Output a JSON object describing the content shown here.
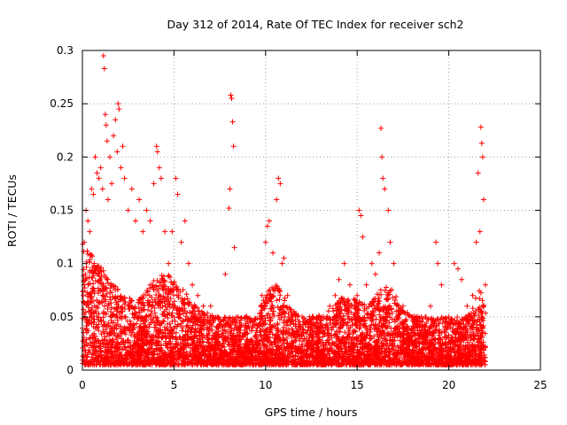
{
  "chart_data": {
    "type": "scatter",
    "title": "Day 312 of 2014, Rate Of TEC Index for receiver sch2",
    "xlabel": "GPS time / hours",
    "ylabel": "ROTI / TECUs",
    "xlim": [
      0,
      25
    ],
    "ylim": [
      0,
      0.3
    ],
    "x_ticks": [
      0,
      5,
      10,
      15,
      20,
      25
    ],
    "y_ticks": [
      0,
      0.05,
      0.1,
      0.15,
      0.2,
      0.25,
      0.3
    ],
    "x_tick_labels": [
      "0",
      "5",
      "10",
      "15",
      "20",
      "25"
    ],
    "y_tick_labels": [
      "0",
      "0.05",
      "0.1",
      "0.15",
      "0.2",
      "0.25",
      "0.3"
    ],
    "grid": true,
    "marker": "+",
    "color": "#ff0000",
    "x_data_range": [
      0,
      22
    ],
    "series": [
      {
        "points": [
          [
            0.05,
            0.07
          ],
          [
            0.1,
            0.12
          ],
          [
            0.2,
            0.15
          ],
          [
            0.3,
            0.14
          ],
          [
            0.4,
            0.13
          ],
          [
            0.5,
            0.17
          ],
          [
            0.6,
            0.165
          ],
          [
            0.7,
            0.2
          ],
          [
            0.8,
            0.185
          ],
          [
            0.9,
            0.18
          ],
          [
            1.0,
            0.19
          ],
          [
            1.1,
            0.17
          ],
          [
            1.15,
            0.295
          ],
          [
            1.2,
            0.283
          ],
          [
            1.25,
            0.24
          ],
          [
            1.3,
            0.23
          ],
          [
            1.35,
            0.215
          ],
          [
            1.4,
            0.16
          ],
          [
            1.5,
            0.2
          ],
          [
            1.6,
            0.175
          ],
          [
            1.7,
            0.22
          ],
          [
            1.8,
            0.235
          ],
          [
            1.9,
            0.205
          ],
          [
            1.95,
            0.25
          ],
          [
            2.0,
            0.245
          ],
          [
            2.1,
            0.19
          ],
          [
            2.2,
            0.21
          ],
          [
            2.3,
            0.18
          ],
          [
            2.5,
            0.15
          ],
          [
            2.7,
            0.17
          ],
          [
            2.9,
            0.14
          ],
          [
            3.1,
            0.16
          ],
          [
            3.3,
            0.13
          ],
          [
            3.5,
            0.15
          ],
          [
            3.7,
            0.14
          ],
          [
            3.9,
            0.175
          ],
          [
            4.05,
            0.21
          ],
          [
            4.1,
            0.205
          ],
          [
            4.2,
            0.19
          ],
          [
            4.3,
            0.18
          ],
          [
            4.5,
            0.13
          ],
          [
            4.7,
            0.1
          ],
          [
            4.9,
            0.13
          ],
          [
            5.1,
            0.18
          ],
          [
            5.2,
            0.165
          ],
          [
            5.4,
            0.12
          ],
          [
            5.6,
            0.14
          ],
          [
            5.8,
            0.1
          ],
          [
            6.0,
            0.08
          ],
          [
            6.3,
            0.07
          ],
          [
            6.6,
            0.06
          ],
          [
            7.0,
            0.06
          ],
          [
            7.4,
            0.05
          ],
          [
            7.8,
            0.09
          ],
          [
            8.0,
            0.152
          ],
          [
            8.05,
            0.17
          ],
          [
            8.1,
            0.258
          ],
          [
            8.15,
            0.255
          ],
          [
            8.2,
            0.233
          ],
          [
            8.25,
            0.21
          ],
          [
            8.3,
            0.115
          ],
          [
            8.5,
            0.05
          ],
          [
            9.0,
            0.04
          ],
          [
            9.5,
            0.03
          ],
          [
            9.8,
            0.07
          ],
          [
            10.0,
            0.12
          ],
          [
            10.1,
            0.135
          ],
          [
            10.2,
            0.14
          ],
          [
            10.4,
            0.11
          ],
          [
            10.6,
            0.16
          ],
          [
            10.7,
            0.18
          ],
          [
            10.8,
            0.175
          ],
          [
            10.9,
            0.1
          ],
          [
            11.0,
            0.105
          ],
          [
            11.2,
            0.07
          ],
          [
            11.5,
            0.05
          ],
          [
            12.0,
            0.05
          ],
          [
            12.5,
            0.045
          ],
          [
            13.0,
            0.04
          ],
          [
            13.5,
            0.06
          ],
          [
            13.8,
            0.07
          ],
          [
            14.0,
            0.085
          ],
          [
            14.3,
            0.1
          ],
          [
            14.6,
            0.08
          ],
          [
            15.0,
            0.07
          ],
          [
            15.1,
            0.15
          ],
          [
            15.2,
            0.145
          ],
          [
            15.3,
            0.125
          ],
          [
            15.5,
            0.08
          ],
          [
            15.8,
            0.1
          ],
          [
            16.0,
            0.09
          ],
          [
            16.2,
            0.11
          ],
          [
            16.3,
            0.227
          ],
          [
            16.35,
            0.2
          ],
          [
            16.4,
            0.18
          ],
          [
            16.5,
            0.17
          ],
          [
            16.7,
            0.15
          ],
          [
            16.8,
            0.12
          ],
          [
            17.0,
            0.1
          ],
          [
            17.5,
            0.06
          ],
          [
            18.0,
            0.05
          ],
          [
            18.5,
            0.05
          ],
          [
            19.0,
            0.06
          ],
          [
            19.3,
            0.12
          ],
          [
            19.4,
            0.1
          ],
          [
            19.6,
            0.08
          ],
          [
            20.0,
            0.05
          ],
          [
            20.3,
            0.1
          ],
          [
            20.5,
            0.095
          ],
          [
            20.7,
            0.085
          ],
          [
            21.0,
            0.06
          ],
          [
            21.3,
            0.07
          ],
          [
            21.5,
            0.12
          ],
          [
            21.6,
            0.185
          ],
          [
            21.7,
            0.13
          ],
          [
            21.75,
            0.228
          ],
          [
            21.8,
            0.213
          ],
          [
            21.85,
            0.2
          ],
          [
            21.9,
            0.16
          ],
          [
            22.0,
            0.08
          ]
        ]
      }
    ]
  }
}
